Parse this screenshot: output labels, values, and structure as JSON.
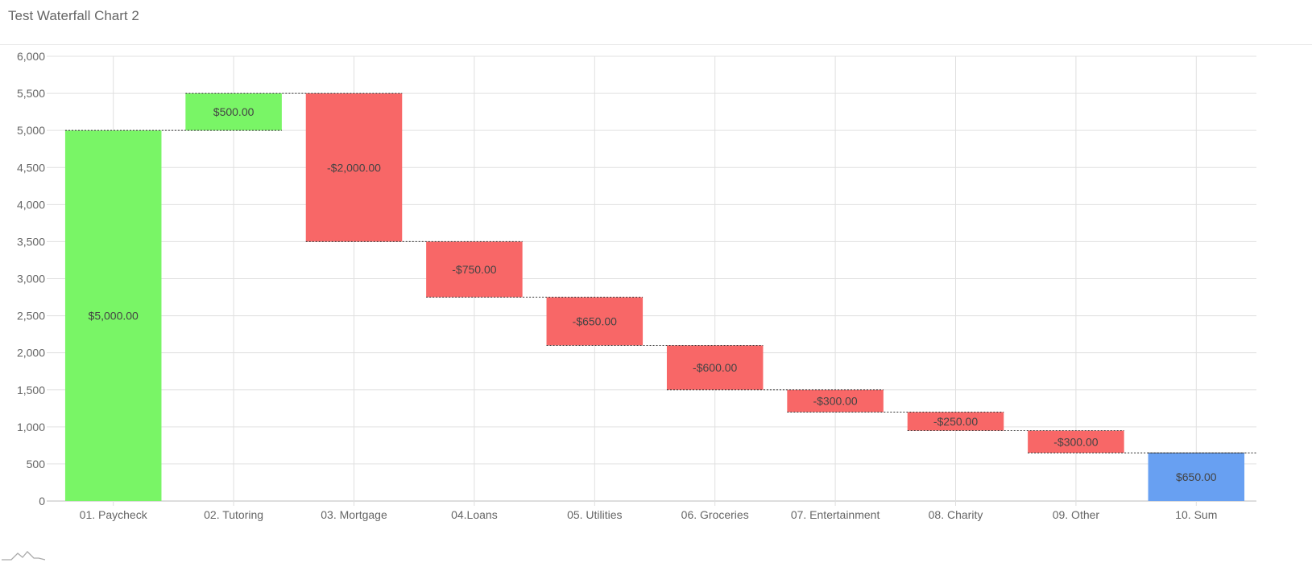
{
  "chart_title": "Test Waterfall Chart 2",
  "colors": {
    "increase": "#79f566",
    "decrease": "#f86767",
    "total": "#68a0f2",
    "grid": "#e0e0e0",
    "connector": "#333333"
  },
  "chart_data": {
    "type": "bar",
    "subtype": "waterfall",
    "title": "Test Waterfall Chart 2",
    "categories": [
      "01. Paycheck",
      "02. Tutoring",
      "03. Mortgage",
      "04.Loans",
      "05. Utilities",
      "06. Groceries",
      "07. Entertainment",
      "08. Charity",
      "09. Other",
      "10. Sum"
    ],
    "values": [
      5000,
      500,
      -2000,
      -750,
      -650,
      -600,
      -300,
      -250,
      -300,
      650
    ],
    "kinds": [
      "increase",
      "increase",
      "decrease",
      "decrease",
      "decrease",
      "decrease",
      "decrease",
      "decrease",
      "decrease",
      "total"
    ],
    "data_labels": [
      "$5,000.00",
      "$500.00",
      "-$2,000.00",
      "-$750.00",
      "-$650.00",
      "-$600.00",
      "-$300.00",
      "-$250.00",
      "-$300.00",
      "$650.00"
    ],
    "ylim": [
      0,
      6000
    ],
    "ytick_step": 500,
    "ytick_labels": [
      "0",
      "500",
      "1,000",
      "1,500",
      "2,000",
      "2,500",
      "3,000",
      "3,500",
      "4,000",
      "4,500",
      "5,000",
      "5,500",
      "6,000"
    ],
    "grid": true,
    "legend": "none"
  }
}
